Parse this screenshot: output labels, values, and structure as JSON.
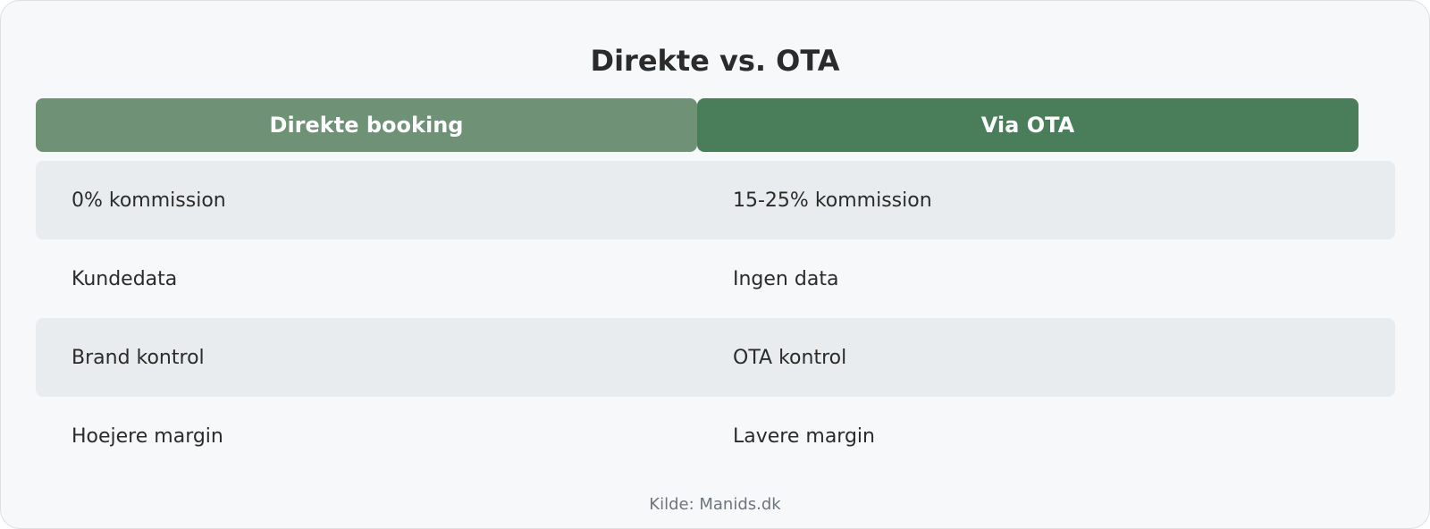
{
  "title": "Direkte vs. OTA",
  "columns": {
    "left": {
      "label": "Direkte booking",
      "color": "#6f9175"
    },
    "right": {
      "label": "Via OTA",
      "color": "#4a7d5a"
    }
  },
  "rows": [
    {
      "left": "0% kommission",
      "right": "15-25% kommission",
      "shaded": true
    },
    {
      "left": "Kundedata",
      "right": "Ingen data",
      "shaded": false
    },
    {
      "left": "Brand kontrol",
      "right": "OTA kontrol",
      "shaded": true
    },
    {
      "left": "Hoejere margin",
      "right": "Lavere margin",
      "shaded": false
    }
  ],
  "footer": "Kilde: Manids.dk",
  "colors": {
    "shade": "#e9ecee",
    "text": "#2b2b2b",
    "background": "#f7f8fa"
  }
}
